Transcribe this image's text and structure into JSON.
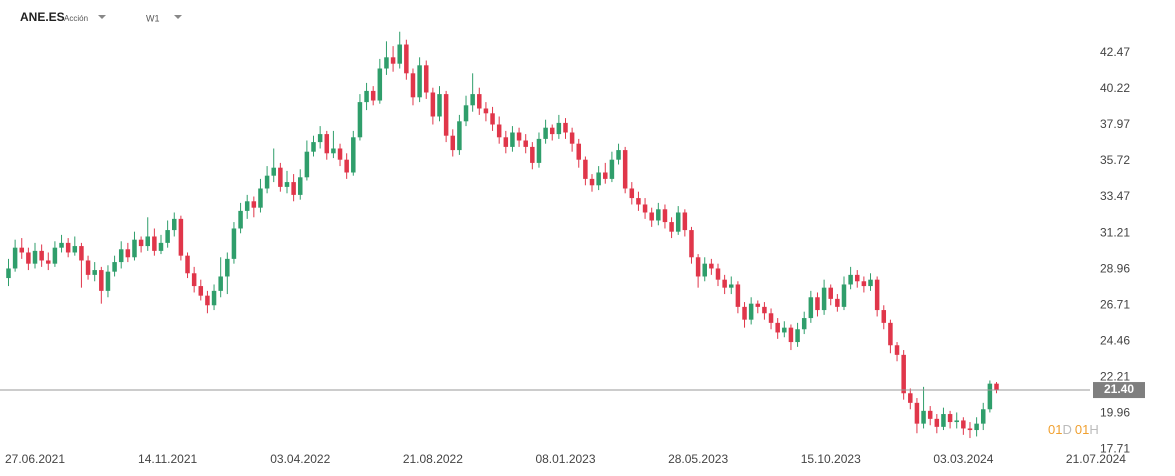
{
  "chart_data": {
    "type": "candlestick",
    "symbol": "ANE.ES",
    "instrument_type": "Acción",
    "interval": "W1",
    "up_color": "#2f9e6b",
    "down_color": "#e0364a",
    "last_price": {
      "value": 21.4,
      "label": "21.40"
    },
    "countdown": {
      "days": "01",
      "day_unit": "D",
      "hours": "01",
      "hour_unit": "H"
    },
    "xlim": [
      -1.28,
      163.1
    ],
    "xticks": [
      {
        "value": 4,
        "label": "27.06.2021"
      },
      {
        "value": 24,
        "label": "14.11.2021"
      },
      {
        "value": 44,
        "label": "03.04.2022"
      },
      {
        "value": 64,
        "label": "21.08.2022"
      },
      {
        "value": 84,
        "label": "08.01.2023"
      },
      {
        "value": 104,
        "label": "28.05.2023"
      },
      {
        "value": 124,
        "label": "15.10.2023"
      },
      {
        "value": 144,
        "label": "03.03.2024"
      },
      {
        "value": 164,
        "label": "21.07.2024"
      }
    ],
    "ylim": [
      17.34,
      45.47
    ],
    "yticks": [
      17.71,
      19.96,
      22.21,
      24.46,
      26.71,
      28.96,
      31.21,
      33.47,
      35.72,
      37.97,
      40.22,
      42.47
    ],
    "open": [
      28.4,
      29.0,
      30.3,
      30.0,
      29.3,
      30.1,
      29.5,
      29.3,
      30.3,
      30.6,
      30.0,
      30.4,
      29.5,
      28.6,
      28.9,
      27.6,
      28.8,
      29.4,
      30.2,
      29.7,
      30.8,
      30.4,
      31.0,
      30.1,
      30.6,
      31.4,
      32.1,
      29.8,
      28.7,
      27.9,
      27.3,
      26.7,
      27.6,
      28.5,
      29.6,
      31.5,
      32.6,
      33.2,
      32.8,
      34.0,
      34.8,
      35.3,
      34.1,
      34.4,
      33.6,
      34.7,
      36.3,
      36.9,
      37.4,
      36.2,
      36.5,
      35.8,
      35.0,
      37.2,
      39.4,
      40.1,
      39.5,
      41.5,
      42.2,
      41.8,
      43.0,
      41.2,
      39.7,
      41.7,
      40.0,
      38.5,
      39.9,
      37.3,
      36.4,
      38.2,
      39.2,
      39.9,
      39.0,
      38.7,
      38.0,
      37.2,
      36.6,
      37.5,
      37.0,
      36.6,
      35.6,
      37.1,
      37.8,
      37.4,
      38.1,
      37.5,
      36.8,
      35.8,
      34.6,
      34.2,
      35.0,
      34.6,
      35.8,
      36.4,
      34.0,
      33.4,
      33.0,
      32.5,
      32.0,
      32.7,
      31.9,
      31.3,
      32.5,
      31.4,
      29.7,
      28.5,
      29.3,
      29.0,
      28.3,
      27.8,
      28.0,
      26.6,
      25.8,
      26.8,
      26.6,
      26.2,
      25.6,
      25.0,
      25.3,
      24.4,
      25.2,
      25.9,
      27.2,
      26.4,
      27.8,
      27.1,
      26.6,
      28.0,
      28.6,
      28.2,
      27.9,
      28.3,
      26.4,
      25.6,
      24.2,
      23.6,
      21.2,
      20.6,
      19.3,
      20.1,
      19.6,
      19.1,
      19.9,
      19.4,
      19.5,
      19.0,
      18.9,
      19.3,
      20.2,
      21.8
    ],
    "high": [
      29.6,
      30.8,
      30.9,
      30.3,
      30.6,
      30.5,
      30.0,
      30.7,
      31.1,
      30.9,
      31.0,
      30.6,
      29.8,
      29.4,
      29.1,
      29.2,
      29.8,
      30.7,
      30.6,
      31.3,
      31.0,
      32.2,
      31.5,
      31.1,
      32.0,
      32.5,
      32.3,
      30.0,
      29.1,
      28.3,
      27.6,
      28.0,
      29.7,
      30.0,
      31.9,
      33.1,
      33.6,
      33.5,
      34.6,
      35.4,
      36.5,
      35.6,
      35.1,
      34.9,
      35.2,
      37.0,
      37.3,
      37.9,
      37.6,
      37.6,
      36.8,
      36.2,
      37.6,
      39.9,
      40.6,
      40.4,
      42.1,
      43.2,
      42.9,
      43.8,
      43.3,
      41.5,
      42.2,
      42.0,
      40.3,
      40.4,
      40.1,
      37.7,
      38.6,
      39.8,
      41.2,
      40.3,
      39.4,
      39.1,
      38.5,
      37.6,
      37.9,
      37.8,
      37.4,
      36.9,
      37.5,
      38.3,
      38.0,
      38.6,
      38.4,
      37.8,
      37.1,
      36.0,
      34.9,
      35.4,
      35.6,
      36.3,
      36.8,
      36.6,
      34.4,
      33.8,
      33.4,
      32.8,
      33.1,
      33.0,
      32.2,
      32.9,
      32.7,
      31.6,
      29.9,
      29.7,
      29.6,
      29.3,
      28.6,
      28.5,
      28.2,
      26.9,
      27.2,
      27.0,
      26.9,
      26.5,
      25.9,
      25.7,
      25.5,
      25.6,
      26.3,
      27.6,
      27.5,
      28.3,
      28.0,
      27.4,
      28.5,
      29.1,
      28.9,
      28.5,
      28.7,
      28.5,
      26.7,
      25.8,
      24.4,
      23.9,
      21.5,
      20.9,
      21.6,
      20.4,
      19.9,
      20.3,
      20.1,
      20.0,
      19.7,
      19.4,
      19.7,
      20.6,
      22.0,
      21.9
    ],
    "low": [
      27.9,
      28.8,
      29.6,
      28.9,
      29.0,
      29.1,
      28.9,
      29.1,
      30.0,
      29.7,
      29.8,
      27.8,
      28.3,
      28.2,
      26.8,
      27.2,
      28.5,
      29.0,
      29.4,
      29.5,
      30.0,
      30.1,
      29.8,
      29.9,
      30.3,
      31.0,
      29.5,
      28.4,
      27.5,
      27.0,
      26.2,
      26.4,
      27.2,
      27.4,
      29.3,
      31.2,
      32.1,
      32.2,
      32.5,
      33.7,
      34.4,
      33.8,
      33.7,
      33.2,
      33.3,
      34.5,
      36.0,
      36.5,
      35.8,
      35.9,
      35.4,
      34.6,
      34.8,
      37.0,
      38.9,
      39.2,
      39.3,
      41.1,
      41.3,
      41.5,
      40.8,
      39.2,
      39.4,
      39.6,
      38.0,
      38.2,
      36.9,
      36.0,
      36.1,
      37.9,
      38.8,
      38.6,
      38.2,
      37.6,
      36.8,
      36.2,
      36.3,
      36.6,
      36.2,
      35.2,
      35.3,
      36.8,
      37.0,
      37.1,
      37.1,
      36.3,
      35.3,
      34.2,
      33.8,
      33.9,
      34.3,
      34.4,
      35.5,
      33.7,
      33.0,
      32.6,
      32.1,
      31.6,
      31.7,
      31.5,
      30.9,
      31.1,
      31.0,
      29.3,
      27.8,
      28.2,
      28.6,
      27.9,
      27.4,
      27.4,
      26.2,
      25.3,
      25.5,
      26.2,
      25.8,
      25.2,
      24.6,
      24.7,
      23.9,
      24.1,
      24.9,
      25.6,
      26.0,
      26.1,
      26.7,
      26.3,
      26.4,
      27.7,
      27.8,
      27.5,
      27.6,
      26.0,
      25.2,
      23.7,
      23.2,
      20.8,
      20.2,
      18.7,
      19.0,
      19.2,
      18.7,
      18.9,
      19.0,
      19.0,
      18.6,
      18.4,
      18.5,
      18.9,
      20.0,
      21.2
    ],
    "close": [
      29.0,
      30.3,
      30.0,
      29.3,
      30.1,
      29.5,
      29.3,
      30.3,
      30.6,
      30.0,
      30.4,
      29.5,
      28.6,
      28.9,
      27.6,
      28.8,
      29.4,
      30.2,
      29.7,
      30.8,
      30.4,
      31.0,
      30.1,
      30.6,
      31.4,
      32.1,
      29.8,
      28.7,
      27.9,
      27.3,
      26.7,
      27.6,
      28.5,
      29.6,
      31.5,
      32.6,
      33.2,
      32.8,
      34.0,
      34.8,
      35.3,
      34.1,
      34.4,
      33.6,
      34.7,
      36.3,
      36.9,
      37.4,
      36.2,
      36.5,
      35.8,
      35.0,
      37.2,
      39.4,
      40.1,
      39.5,
      41.5,
      42.2,
      41.8,
      43.0,
      41.2,
      39.7,
      41.7,
      40.0,
      38.5,
      39.9,
      37.3,
      36.4,
      38.2,
      39.2,
      39.9,
      39.0,
      38.7,
      38.0,
      37.2,
      36.6,
      37.5,
      37.0,
      36.6,
      35.6,
      37.1,
      37.8,
      37.4,
      38.1,
      37.5,
      36.8,
      35.8,
      34.6,
      34.2,
      35.0,
      34.6,
      35.8,
      36.4,
      34.0,
      33.4,
      33.0,
      32.5,
      32.0,
      32.7,
      31.9,
      31.3,
      32.5,
      31.4,
      29.7,
      28.5,
      29.3,
      29.0,
      28.3,
      27.8,
      28.0,
      26.6,
      25.8,
      26.8,
      26.6,
      26.2,
      25.6,
      25.0,
      25.3,
      24.4,
      25.2,
      25.9,
      27.2,
      26.4,
      27.8,
      27.1,
      26.6,
      28.0,
      28.6,
      28.2,
      27.9,
      28.3,
      26.4,
      25.6,
      24.2,
      23.6,
      21.2,
      20.6,
      19.3,
      20.1,
      19.6,
      19.1,
      19.9,
      19.4,
      19.5,
      19.0,
      18.9,
      19.3,
      20.2,
      21.8,
      21.4
    ]
  }
}
